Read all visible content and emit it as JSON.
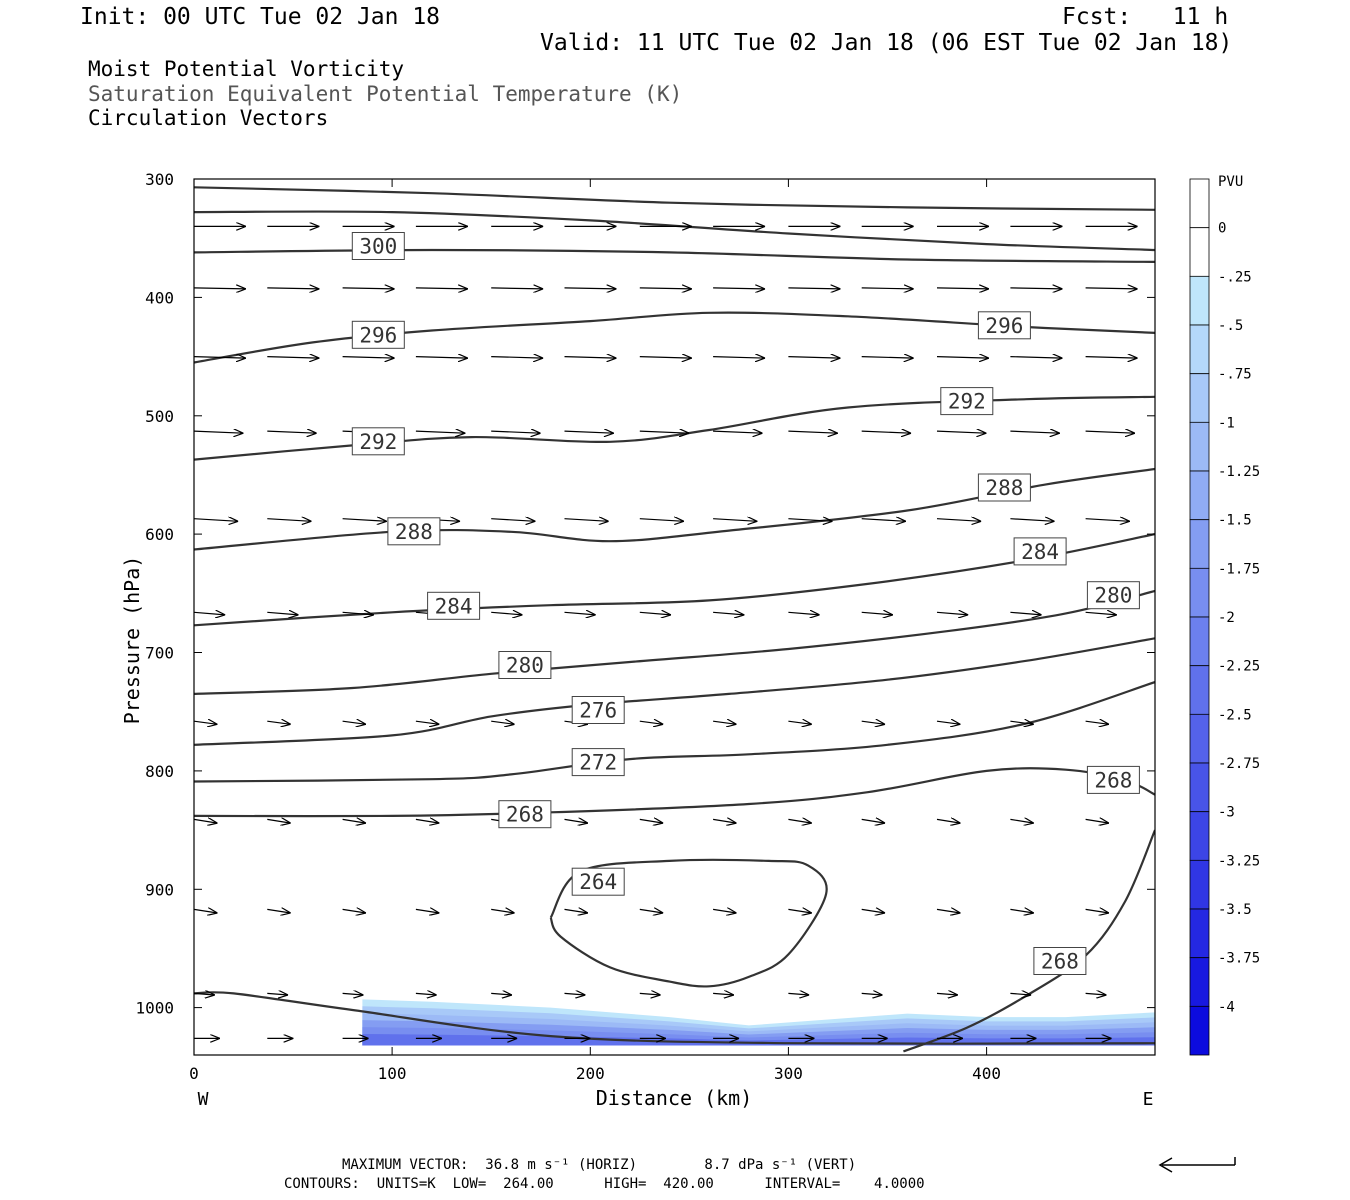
{
  "header": {
    "init": "Init: 00 UTC Tue 02 Jan 18",
    "fcst": "Fcst:   11 h",
    "valid": "Valid: 11 UTC Tue 02 Jan 18 (06 EST Tue 02 Jan 18)",
    "fields": [
      "Moist Potential Vorticity",
      "Saturation Equivalent Potential Temperature (K)",
      "Circulation Vectors"
    ]
  },
  "footer": {
    "max_vector": "MAXIMUM VECTOR:  36.8 m s⁻¹ (HORIZ)        8.7 dPa s⁻¹ (VERT)",
    "contours": "CONTOURS:  UNITS=K  LOW=  264.00      HIGH=  420.00      INTERVAL=    4.0000"
  },
  "colors": {
    "contour": "#333333",
    "vector": "#000000",
    "pv_scale": [
      "#bfe6fb",
      "#b4d8fa",
      "#a8c9f8",
      "#9cbaf6",
      "#90acf4",
      "#849df2",
      "#788ef0",
      "#6c80ee",
      "#6071ec",
      "#5462ea",
      "#4854e8",
      "#3c45e6",
      "#3036e4",
      "#2428e2",
      "#1819e0",
      "#0c0bde"
    ]
  },
  "chart_data": {
    "type": "cross-section",
    "xlabel": "Distance (km)",
    "ylabel": "Pressure (hPa)",
    "xlim": [
      0,
      485
    ],
    "ylim": [
      1040,
      300
    ],
    "x_ticks": [
      0,
      100,
      200,
      300,
      400
    ],
    "y_ticks": [
      300,
      400,
      500,
      600,
      700,
      800,
      900,
      1000
    ],
    "x_end_labels": [
      "W",
      "E"
    ],
    "colorbar": {
      "unit": "PVU",
      "labels": [
        "0",
        "-.25",
        "-.5",
        "-.75",
        "-1",
        "-1.25",
        "-1.5",
        "-1.75",
        "-2",
        "-2.25",
        "-2.5",
        "-2.75",
        "-3",
        "-3.25",
        "-3.5",
        "-3.75",
        "-4"
      ]
    },
    "contours": [
      {
        "value": 300,
        "points": [
          [
            0,
            307
          ],
          [
            120,
            312
          ],
          [
            240,
            320
          ],
          [
            360,
            324
          ],
          [
            485,
            326
          ]
        ]
      },
      {
        "value": 300,
        "points": [
          [
            0,
            328
          ],
          [
            100,
            328
          ],
          [
            200,
            335
          ],
          [
            300,
            346
          ],
          [
            400,
            355
          ],
          [
            485,
            360
          ]
        ]
      },
      {
        "value": 300,
        "points": [
          [
            0,
            362
          ],
          [
            120,
            360
          ],
          [
            240,
            362
          ],
          [
            360,
            368
          ],
          [
            485,
            370
          ]
        ]
      },
      {
        "value": 296,
        "points": [
          [
            0,
            455
          ],
          [
            60,
            438
          ],
          [
            120,
            428
          ],
          [
            200,
            420
          ],
          [
            260,
            413
          ],
          [
            330,
            416
          ],
          [
            420,
            425
          ],
          [
            485,
            430
          ]
        ]
      },
      {
        "value": 292,
        "points": [
          [
            0,
            537
          ],
          [
            80,
            525
          ],
          [
            140,
            518
          ],
          [
            210,
            522
          ],
          [
            260,
            512
          ],
          [
            330,
            493
          ],
          [
            420,
            486
          ],
          [
            485,
            484
          ]
        ]
      },
      {
        "value": 288,
        "points": [
          [
            0,
            613
          ],
          [
            100,
            598
          ],
          [
            160,
            598
          ],
          [
            210,
            606
          ],
          [
            270,
            597
          ],
          [
            360,
            580
          ],
          [
            430,
            558
          ],
          [
            485,
            545
          ]
        ]
      },
      {
        "value": 284,
        "points": [
          [
            0,
            677
          ],
          [
            100,
            666
          ],
          [
            180,
            660
          ],
          [
            260,
            656
          ],
          [
            340,
            642
          ],
          [
            420,
            622
          ],
          [
            485,
            600
          ]
        ]
      },
      {
        "value": 280,
        "points": [
          [
            0,
            735
          ],
          [
            80,
            730
          ],
          [
            150,
            718
          ],
          [
            220,
            708
          ],
          [
            300,
            697
          ],
          [
            380,
            682
          ],
          [
            440,
            667
          ],
          [
            485,
            648
          ]
        ]
      },
      {
        "value": 276,
        "points": [
          [
            0,
            778
          ],
          [
            100,
            770
          ],
          [
            150,
            754
          ],
          [
            200,
            744
          ],
          [
            270,
            735
          ],
          [
            350,
            723
          ],
          [
            420,
            707
          ],
          [
            485,
            688
          ]
        ]
      },
      {
        "value": 272,
        "points": [
          [
            0,
            809
          ],
          [
            120,
            807
          ],
          [
            160,
            803
          ],
          [
            220,
            790
          ],
          [
            280,
            786
          ],
          [
            350,
            778
          ],
          [
            420,
            760
          ],
          [
            485,
            725
          ]
        ]
      },
      {
        "value": 268,
        "points": [
          [
            0,
            838
          ],
          [
            100,
            838
          ],
          [
            180,
            835
          ],
          [
            280,
            828
          ],
          [
            340,
            818
          ],
          [
            400,
            800
          ],
          [
            440,
            799
          ],
          [
            470,
            808
          ],
          [
            485,
            820
          ]
        ]
      },
      {
        "value": 264,
        "closed": true,
        "points": [
          [
            180,
            924
          ],
          [
            195,
            885
          ],
          [
            240,
            876
          ],
          [
            290,
            876
          ],
          [
            310,
            880
          ],
          [
            319,
            904
          ],
          [
            300,
            955
          ],
          [
            280,
            974
          ],
          [
            260,
            982
          ],
          [
            240,
            978
          ],
          [
            210,
            966
          ],
          [
            185,
            940
          ],
          [
            180,
            924
          ]
        ]
      },
      {
        "value": 268,
        "points": [
          [
            358,
            1037
          ],
          [
            390,
            1017
          ],
          [
            420,
            990
          ],
          [
            450,
            956
          ],
          [
            470,
            910
          ],
          [
            485,
            850
          ]
        ]
      },
      {
        "value": 268,
        "points": [
          [
            0,
            988
          ],
          [
            20,
            988
          ],
          [
            80,
            1002
          ],
          [
            180,
            1024
          ],
          [
            300,
            1030
          ],
          [
            485,
            1030
          ]
        ]
      }
    ],
    "labels": [
      {
        "text": "300",
        "x": 93,
        "p": 357
      },
      {
        "text": "296",
        "x": 93,
        "p": 432
      },
      {
        "text": "296",
        "x": 409,
        "p": 424
      },
      {
        "text": "292",
        "x": 93,
        "p": 522
      },
      {
        "text": "292",
        "x": 390,
        "p": 488
      },
      {
        "text": "288",
        "x": 111,
        "p": 598
      },
      {
        "text": "288",
        "x": 409,
        "p": 561
      },
      {
        "text": "284",
        "x": 131,
        "p": 661
      },
      {
        "text": "284",
        "x": 427,
        "p": 615
      },
      {
        "text": "280",
        "x": 167,
        "p": 711
      },
      {
        "text": "280",
        "x": 464,
        "p": 652
      },
      {
        "text": "276",
        "x": 204,
        "p": 749
      },
      {
        "text": "272",
        "x": 204,
        "p": 793
      },
      {
        "text": "268",
        "x": 167,
        "p": 837
      },
      {
        "text": "268",
        "x": 464,
        "p": 808
      },
      {
        "text": "264",
        "x": 204,
        "p": 894
      },
      {
        "text": "268",
        "x": 437,
        "p": 961
      }
    ],
    "vectors": [
      {
        "p": 340,
        "u": 1.0,
        "w": 0.0
      },
      {
        "p": 392,
        "u": 1.0,
        "w": 0.02
      },
      {
        "p": 450,
        "u": 1.0,
        "w": 0.03
      },
      {
        "p": 513,
        "u": 0.95,
        "w": 0.04
      },
      {
        "p": 587,
        "u": 0.85,
        "w": 0.05
      },
      {
        "p": 666,
        "u": 0.6,
        "w": 0.05
      },
      {
        "p": 758,
        "u": 0.45,
        "w": 0.06
      },
      {
        "p": 841,
        "u": 0.45,
        "w": 0.07
      },
      {
        "p": 917,
        "u": 0.45,
        "w": 0.07
      },
      {
        "p": 988,
        "u": 0.4,
        "w": 0.03
      },
      {
        "p": 1026,
        "u": 0.5,
        "w": 0.0
      }
    ],
    "vector_columns": [
      0,
      37,
      75,
      112,
      150,
      187,
      225,
      262,
      300,
      337,
      375,
      412,
      450
    ],
    "pv_region": {
      "top": [
        [
          85,
          993
        ],
        [
          120,
          995
        ],
        [
          180,
          1000
        ],
        [
          240,
          1008
        ],
        [
          280,
          1015
        ],
        [
          320,
          1010
        ],
        [
          360,
          1005
        ],
        [
          400,
          1008
        ],
        [
          440,
          1008
        ],
        [
          485,
          1004
        ]
      ],
      "bottom_p": 1032,
      "min_value": -2.3
    }
  }
}
